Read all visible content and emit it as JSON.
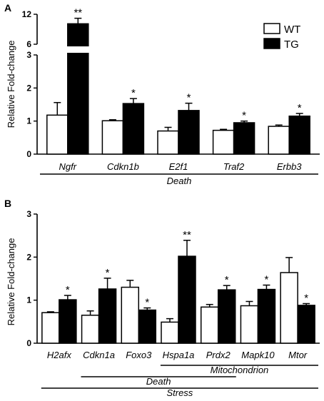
{
  "chart_data": [
    {
      "panel": "A",
      "type": "bar",
      "ylabel": "Relative Fold-change",
      "ylim_lower": [
        0,
        3
      ],
      "ylim_upper": [
        6,
        12
      ],
      "upper_ticks": [
        "6",
        "12"
      ],
      "lower_ticks": [
        "0",
        "1",
        "2",
        "3"
      ],
      "categories": [
        "Ngfr",
        "Cdkn1b",
        "E2f1",
        "Traf2",
        "Erbb3"
      ],
      "series": [
        {
          "name": "WT",
          "color": "#ffffff",
          "values": [
            1.18,
            1.01,
            0.7,
            0.72,
            0.84
          ],
          "errors": [
            0.38,
            0.03,
            0.11,
            0.03,
            0.04
          ]
        },
        {
          "name": "TG",
          "color": "#000000",
          "values": [
            10.1,
            1.53,
            1.32,
            0.95,
            1.15
          ],
          "errors": [
            1.1,
            0.15,
            0.22,
            0.05,
            0.08
          ]
        }
      ],
      "significance": [
        "**",
        "*",
        "*",
        "*",
        "*"
      ],
      "groups": [
        {
          "label": "Death",
          "from": 0,
          "to": 4
        }
      ]
    },
    {
      "panel": "B",
      "type": "bar",
      "ylabel": "Relative Fold-change",
      "ylim": [
        0,
        3
      ],
      "ticks": [
        "0",
        "1",
        "2",
        "3"
      ],
      "categories": [
        "H2afx",
        "Cdkn1a",
        "Foxo3",
        "Hspa1a",
        "Prdx2",
        "Mapk10",
        "Mtor"
      ],
      "series": [
        {
          "name": "WT",
          "color": "#ffffff",
          "values": [
            0.71,
            0.65,
            1.3,
            0.49,
            0.84,
            0.87,
            1.64
          ],
          "errors": [
            0.02,
            0.1,
            0.16,
            0.08,
            0.06,
            0.1,
            0.35
          ]
        },
        {
          "name": "TG",
          "color": "#000000",
          "values": [
            1.01,
            1.26,
            0.77,
            2.02,
            1.24,
            1.25,
            0.88
          ],
          "errors": [
            0.1,
            0.25,
            0.05,
            0.37,
            0.1,
            0.1,
            0.04
          ]
        }
      ],
      "significance": [
        "*",
        "*",
        "*",
        "**",
        "*",
        "*",
        "*"
      ],
      "groups": [
        {
          "label": "Mitochondrion",
          "from": 3,
          "to": 6
        },
        {
          "label": "Death",
          "from": 1,
          "to": 4
        },
        {
          "label": "Stress",
          "from": 0,
          "to": 6
        }
      ]
    }
  ]
}
